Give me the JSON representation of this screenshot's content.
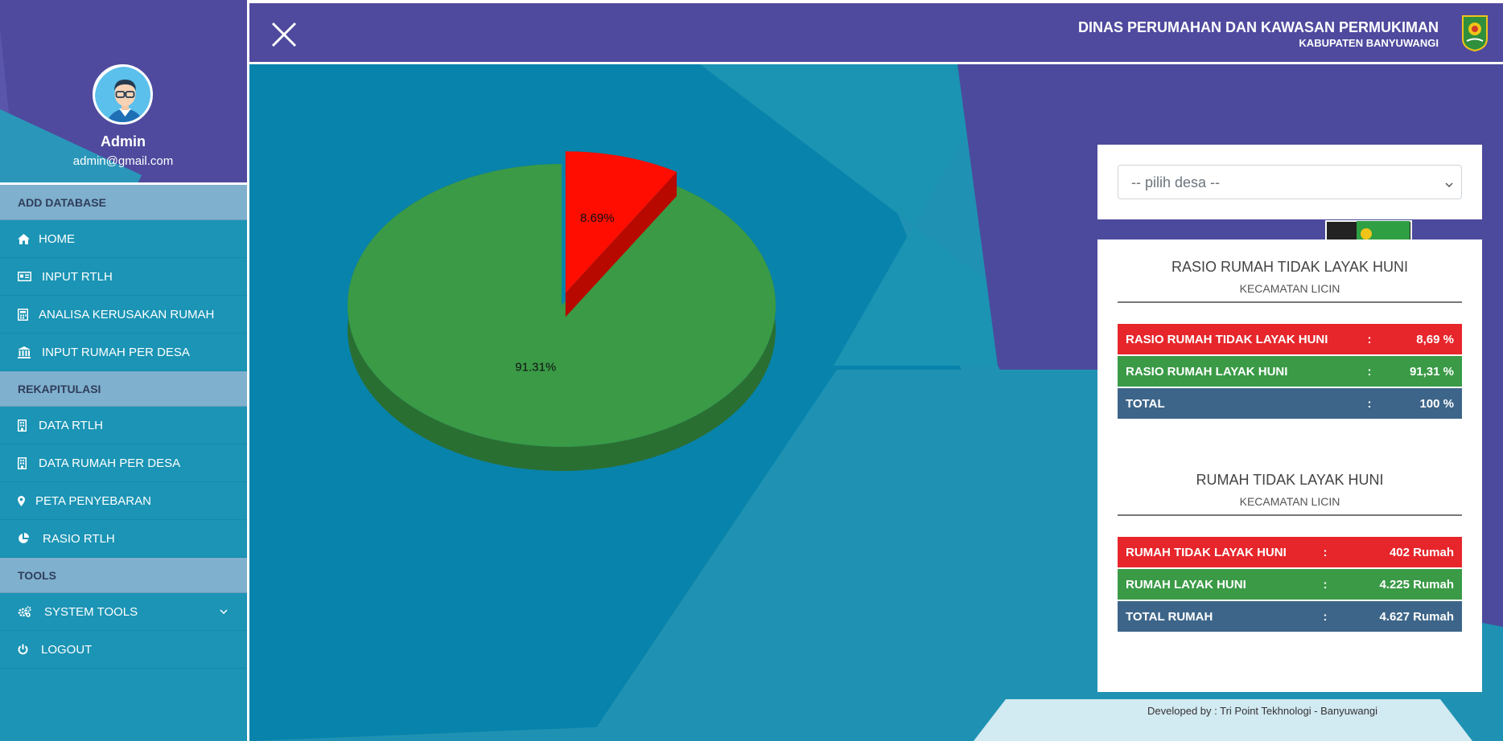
{
  "sidebar": {
    "profile": {
      "name": "Admin",
      "email": "admin@gmail.com"
    },
    "sections": [
      {
        "title": "ADD DATABASE",
        "items": [
          {
            "label": "HOME",
            "icon": "home-icon"
          },
          {
            "label": "INPUT RTLH",
            "icon": "id-card-icon"
          },
          {
            "label": "ANALISA KERUSAKAN RUMAH",
            "icon": "calculator-icon"
          },
          {
            "label": "INPUT RUMAH PER DESA",
            "icon": "bank-icon"
          }
        ]
      },
      {
        "title": "REKAPITULASI",
        "items": [
          {
            "label": "DATA RTLH",
            "icon": "building-icon"
          },
          {
            "label": "DATA RUMAH PER DESA",
            "icon": "building-icon"
          },
          {
            "label": "PETA PENYEBARAN",
            "icon": "map-marker-icon"
          },
          {
            "label": "RASIO RTLH",
            "icon": "pie-chart-icon"
          }
        ]
      },
      {
        "title": "TOOLS",
        "items": [
          {
            "label": "SYSTEM TOOLS",
            "icon": "gears-icon",
            "has_submenu": true
          },
          {
            "label": "LOGOUT",
            "icon": "power-icon"
          }
        ]
      }
    ]
  },
  "header": {
    "title": "DINAS PERUMAHAN DAN KAWASAN PERMUKIMAN",
    "subtitle": "KABUPATEN BANYUWANGI"
  },
  "select": {
    "placeholder": "-- pilih desa --"
  },
  "ratio_panel": {
    "title": "RASIO RUMAH TIDAK LAYAK HUNI",
    "subtitle": "KECAMATAN LICIN",
    "rows": [
      {
        "label": "RASIO RUMAH TIDAK LAYAK HUNI",
        "sep": ":",
        "value": "8,69 %"
      },
      {
        "label": "RASIO RUMAH LAYAK HUNI",
        "sep": ":",
        "value": "91,31 %"
      },
      {
        "label": "TOTAL",
        "sep": ":",
        "value": "100 %"
      }
    ]
  },
  "count_panel": {
    "title": "RUMAH TIDAK LAYAK HUNI",
    "subtitle": "KECAMATAN LICIN",
    "rows": [
      {
        "label": "RUMAH TIDAK LAYAK HUNI",
        "sep": ":",
        "value": "402 Rumah"
      },
      {
        "label": "RUMAH LAYAK HUNI",
        "sep": ":",
        "value": "4.225 Rumah"
      },
      {
        "label": "TOTAL RUMAH",
        "sep": ":",
        "value": "4.627 Rumah"
      }
    ]
  },
  "footer": {
    "credit": "Developed by : Tri Point Tekhnologi - Banyuwangi"
  },
  "colors": {
    "red": "#ff0000",
    "green": "#3a9a46",
    "blue": "#3d6589",
    "purple": "#4f4a9e",
    "teal": "#1f92b3"
  },
  "chart_data": {
    "type": "pie",
    "categories": [
      "",
      ""
    ],
    "values": [
      8.69,
      91.31
    ],
    "labels": [
      "8.69%",
      "91.31%"
    ],
    "colors": [
      "#ff0d00",
      "#3a9a46"
    ],
    "exploded": [
      true,
      false
    ],
    "three_d": true
  }
}
